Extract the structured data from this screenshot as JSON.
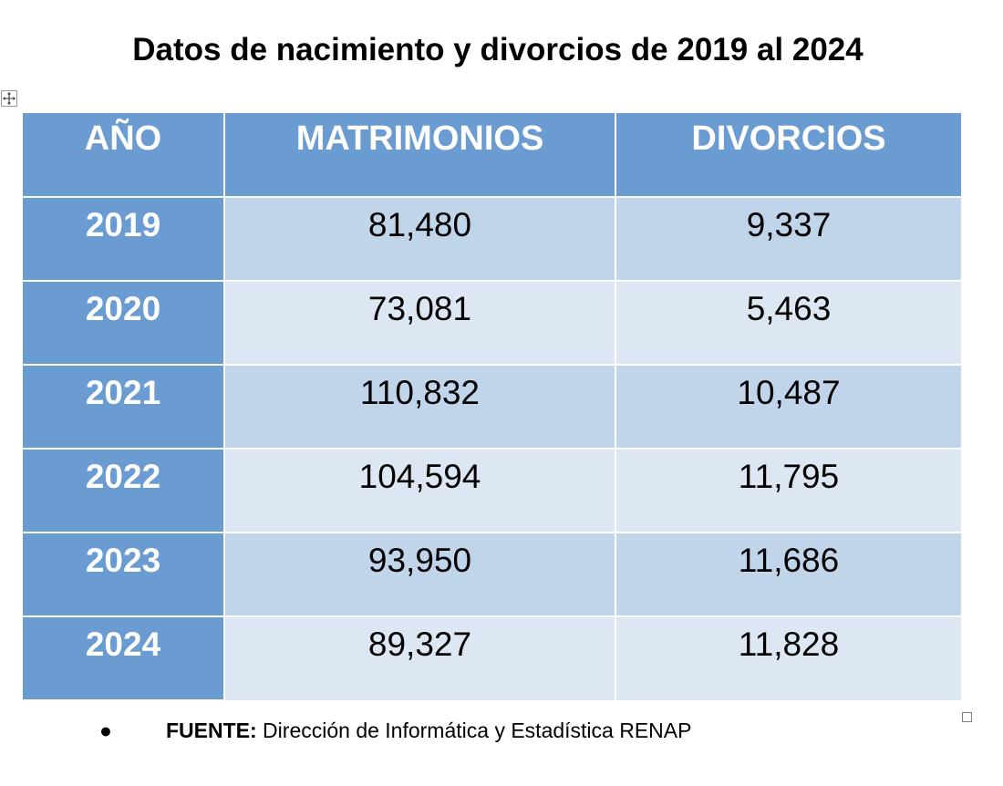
{
  "title": "Datos de nacimiento y divorcios de 2019 al 2024",
  "table": {
    "headers": [
      "AÑO",
      "MATRIMONIOS",
      "DIVORCIOS"
    ],
    "rows": [
      {
        "year": "2019",
        "matrimonios": "81,480",
        "divorcios": "9,337"
      },
      {
        "year": "2020",
        "matrimonios": "73,081",
        "divorcios": "5,463"
      },
      {
        "year": "2021",
        "matrimonios": "110,832",
        "divorcios": "10,487"
      },
      {
        "year": "2022",
        "matrimonios": "104,594",
        "divorcios": "11,795"
      },
      {
        "year": "2023",
        "matrimonios": "93,950",
        "divorcios": "11,686"
      },
      {
        "year": "2024",
        "matrimonios": "89,327",
        "divorcios": "11,828"
      }
    ]
  },
  "source": {
    "bullet": "●",
    "label": "FUENTE:",
    "text": " Dirección de Informática y Estadística RENAP"
  },
  "colors": {
    "header_blue": "#6a9bd1",
    "row_band_dark": "#c0d4ea",
    "row_band_light": "#dde7f3"
  },
  "icons": {
    "table_move_handle": "move-arrows-icon",
    "table_resize_handle": "resize-square-icon"
  }
}
